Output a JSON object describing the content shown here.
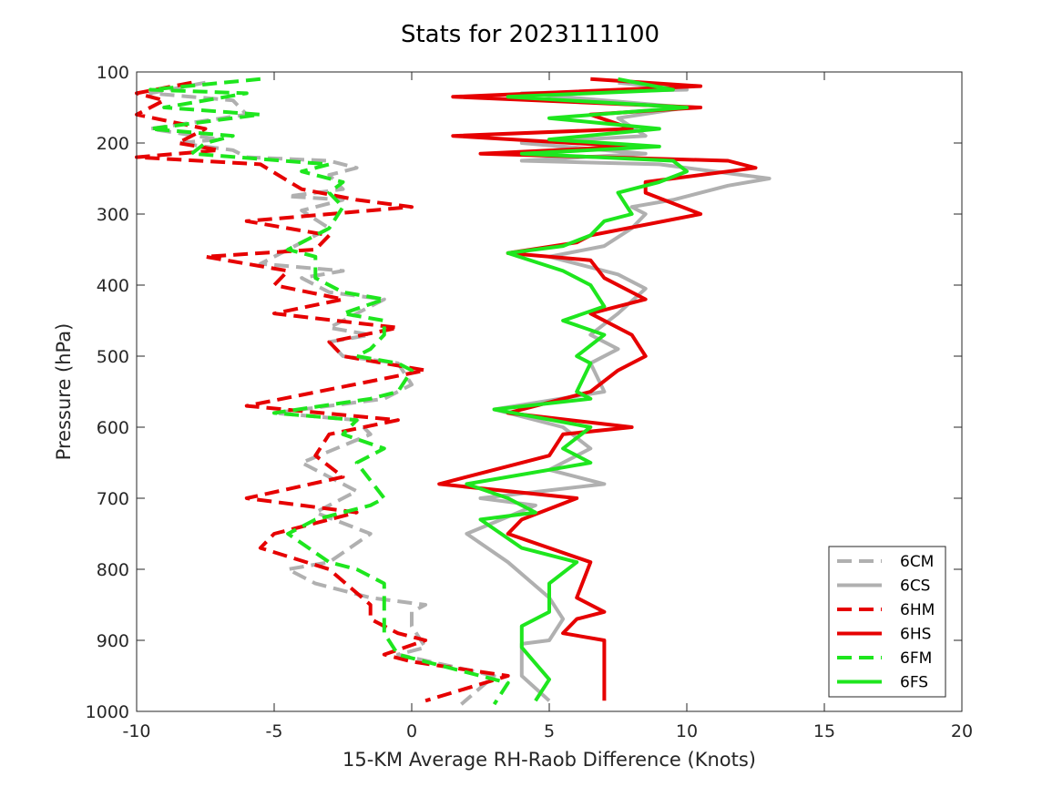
{
  "chart_data": {
    "type": "line",
    "title": "Stats for 2023111100",
    "xlabel": "15-KM Average RH-Raob Difference (Knots)",
    "ylabel": "Pressure (hPa)",
    "xlim": [
      -10,
      20
    ],
    "ylim": [
      100,
      1000
    ],
    "y_reversed": true,
    "grid": false,
    "legend_position": "bottom-right",
    "xticks": [
      -10,
      -5,
      0,
      5,
      10,
      15,
      20
    ],
    "yticks": [
      100,
      200,
      300,
      400,
      500,
      600,
      700,
      800,
      900,
      1000
    ],
    "series": [
      {
        "name": "6CM",
        "color": "#b0b0b0",
        "style": "dashed",
        "x": [
          -7.5,
          -9.5,
          -6.5,
          -6.0,
          -9.5,
          -7.0,
          -8.5,
          -6.5,
          -6.0,
          -3.0,
          -2.0,
          -3.0,
          -2.5,
          -4.5,
          -2.5,
          -4.0,
          -3.0,
          -5.5,
          -2.5,
          -4.0,
          -3.0,
          -1.0,
          -3.0,
          -1.5,
          -3.0,
          -2.5,
          -0.5,
          0.0,
          -1.0,
          -5.0,
          -2.0,
          -1.5,
          -4.0,
          -2.0,
          -3.5,
          -1.5,
          -3.0,
          -4.5,
          -3.5,
          -1.5,
          0.5,
          0.0,
          0.0,
          0.5,
          -0.5,
          3.0,
          1.8
        ],
        "y": [
          115,
          130,
          140,
          160,
          180,
          195,
          200,
          210,
          220,
          225,
          235,
          245,
          265,
          275,
          280,
          295,
          320,
          370,
          380,
          390,
          410,
          420,
          460,
          470,
          480,
          500,
          510,
          540,
          560,
          580,
          590,
          610,
          650,
          690,
          720,
          750,
          790,
          800,
          820,
          840,
          850,
          860,
          880,
          910,
          920,
          950,
          990
        ]
      },
      {
        "name": "6CS",
        "color": "#b0b0b0",
        "style": "solid",
        "x": [
          7.5,
          10.0,
          4.0,
          10.0,
          7.5,
          8.5,
          4.0,
          8.5,
          4.0,
          9.0,
          12.0,
          13.0,
          11.5,
          9.5,
          8.0,
          8.5,
          8.0,
          7.0,
          5.0,
          7.5,
          8.5,
          7.5,
          6.5,
          7.5,
          6.5,
          7.0,
          3.0,
          5.5,
          6.5,
          5.0,
          7.0,
          2.5,
          4.5,
          2.0,
          3.5,
          5.0,
          5.5,
          5.0,
          4.0,
          4.0,
          5.0
        ],
        "y": [
          115,
          125,
          130,
          150,
          165,
          190,
          200,
          215,
          225,
          230,
          245,
          250,
          260,
          280,
          290,
          300,
          320,
          345,
          360,
          385,
          405,
          440,
          470,
          490,
          510,
          550,
          575,
          600,
          630,
          660,
          680,
          700,
          710,
          750,
          790,
          840,
          870,
          900,
          905,
          950,
          985
        ]
      },
      {
        "name": "6HM",
        "color": "#e60000",
        "style": "dashed",
        "x": [
          -8.0,
          -10.0,
          -9.0,
          -10.0,
          -7.5,
          -8.5,
          -7.0,
          -10.0,
          -5.5,
          -4.0,
          -2.0,
          0.0,
          -6.0,
          -3.0,
          -3.5,
          -7.5,
          -4.5,
          -5.0,
          -2.5,
          -5.0,
          -0.5,
          -3.0,
          -2.5,
          0.5,
          -6.0,
          -0.5,
          -3.0,
          -3.5,
          -2.5,
          -6.0,
          -2.0,
          -5.0,
          -5.5,
          -3.0,
          -1.5,
          -1.5,
          -0.5,
          0.5,
          -1.0,
          0.0,
          3.5,
          0.5
        ],
        "y": [
          115,
          130,
          140,
          160,
          180,
          200,
          210,
          220,
          230,
          265,
          280,
          290,
          310,
          330,
          350,
          360,
          380,
          400,
          420,
          440,
          460,
          480,
          500,
          520,
          570,
          590,
          610,
          640,
          670,
          700,
          720,
          750,
          770,
          800,
          850,
          870,
          890,
          900,
          920,
          930,
          950,
          985
        ]
      },
      {
        "name": "6HS",
        "color": "#e60000",
        "style": "solid",
        "x": [
          6.5,
          10.5,
          1.5,
          10.5,
          6.5,
          8.0,
          1.5,
          8.0,
          2.5,
          11.5,
          12.5,
          8.5,
          8.5,
          10.5,
          6.5,
          6.0,
          3.5,
          6.5,
          7.0,
          8.5,
          6.5,
          8.0,
          8.5,
          7.5,
          6.5,
          3.5,
          8.0,
          5.5,
          5.0,
          1.0,
          6.0,
          4.0,
          3.5,
          6.5,
          6.0,
          7.0,
          6.0,
          5.5,
          7.0,
          7.0,
          7.0
        ],
        "y": [
          110,
          120,
          135,
          150,
          160,
          180,
          190,
          205,
          215,
          225,
          235,
          255,
          270,
          300,
          330,
          340,
          355,
          365,
          390,
          420,
          440,
          470,
          500,
          520,
          550,
          580,
          600,
          610,
          640,
          680,
          700,
          730,
          750,
          790,
          840,
          860,
          870,
          890,
          900,
          950,
          985
        ]
      },
      {
        "name": "6FM",
        "color": "#1ee61e",
        "style": "dashed",
        "x": [
          -5.5,
          -9.5,
          -6.0,
          -9.0,
          -5.5,
          -9.5,
          -6.5,
          -7.5,
          -8.0,
          -3.0,
          -4.0,
          -2.5,
          -3.0,
          -2.5,
          -3.0,
          -4.5,
          -3.5,
          -3.5,
          -2.5,
          -1.0,
          -2.5,
          -1.0,
          -1.0,
          -1.5,
          -2.0,
          -0.5,
          0.0,
          -0.5,
          -1.5,
          -5.0,
          -2.0,
          -2.5,
          -1.0,
          -2.0,
          -1.0,
          -1.5,
          -3.5,
          -4.5,
          -3.0,
          -2.0,
          -1.0,
          -1.0,
          -1.0,
          -1.0,
          -0.5,
          3.5,
          3.0
        ],
        "y": [
          110,
          125,
          130,
          150,
          160,
          180,
          190,
          200,
          215,
          230,
          240,
          255,
          270,
          290,
          320,
          350,
          360,
          390,
          410,
          420,
          440,
          450,
          470,
          490,
          500,
          510,
          520,
          550,
          560,
          580,
          590,
          610,
          630,
          650,
          700,
          710,
          730,
          750,
          790,
          800,
          820,
          850,
          870,
          890,
          920,
          960,
          990
        ]
      },
      {
        "name": "6FS",
        "color": "#1ee61e",
        "style": "solid",
        "x": [
          7.5,
          9.5,
          3.5,
          10.0,
          5.0,
          9.0,
          5.0,
          9.0,
          4.0,
          9.5,
          10.0,
          9.0,
          7.5,
          8.0,
          7.0,
          6.5,
          5.5,
          3.5,
          5.5,
          6.5,
          7.0,
          5.5,
          7.0,
          6.0,
          6.5,
          6.0,
          6.5,
          3.0,
          6.5,
          5.5,
          6.5,
          2.0,
          3.5,
          4.5,
          2.5,
          4.0,
          6.0,
          5.0,
          5.0,
          4.0,
          4.0,
          5.0,
          4.5
        ],
        "y": [
          110,
          125,
          135,
          150,
          165,
          180,
          195,
          205,
          215,
          225,
          240,
          255,
          270,
          300,
          310,
          330,
          345,
          355,
          380,
          400,
          430,
          450,
          470,
          500,
          510,
          550,
          560,
          575,
          600,
          630,
          650,
          680,
          700,
          720,
          730,
          770,
          790,
          820,
          860,
          880,
          910,
          955,
          985
        ]
      }
    ]
  }
}
